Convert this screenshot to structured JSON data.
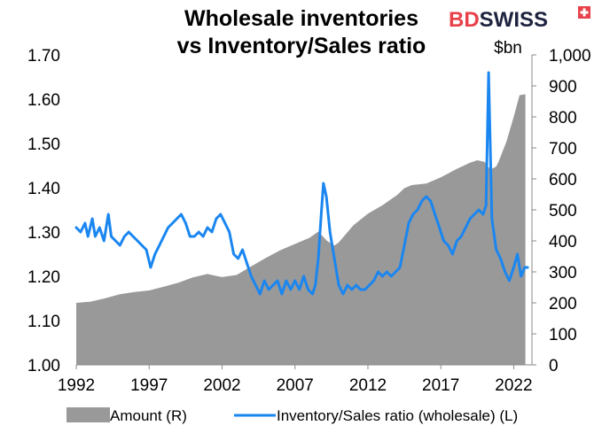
{
  "brand": {
    "name_part1": "BD",
    "name_part2": "SWISS",
    "mark_color": "#e8414b"
  },
  "chart_data": {
    "type": "area+line",
    "title_line1": "Wholesale inventories",
    "title_line2": "vs Inventory/Sales ratio",
    "right_unit": "$bn",
    "x_ticks": [
      "1992",
      "1997",
      "2002",
      "2007",
      "2012",
      "2017",
      "2022"
    ],
    "x_range": [
      1992,
      2023.25
    ],
    "y_left_ticks": [
      "1.00",
      "1.10",
      "1.20",
      "1.30",
      "1.40",
      "1.50",
      "1.60",
      "1.70"
    ],
    "y_left_range": [
      1.0,
      1.7
    ],
    "y_right_ticks": [
      "0",
      "100",
      "200",
      "300",
      "400",
      "500",
      "600",
      "700",
      "800",
      "900",
      "1,000"
    ],
    "y_right_range": [
      0,
      1000
    ],
    "series": [
      {
        "name": "Amount (R)",
        "axis": "right",
        "kind": "area",
        "color": "#999999",
        "points": [
          [
            1992.0,
            200
          ],
          [
            1993.0,
            204
          ],
          [
            1994.0,
            215
          ],
          [
            1995.0,
            228
          ],
          [
            1996.0,
            235
          ],
          [
            1997.0,
            240
          ],
          [
            1998.0,
            252
          ],
          [
            1999.0,
            265
          ],
          [
            2000.0,
            282
          ],
          [
            2001.0,
            293
          ],
          [
            2001.5,
            288
          ],
          [
            2002.0,
            283
          ],
          [
            2003.0,
            290
          ],
          [
            2004.0,
            318
          ],
          [
            2005.0,
            345
          ],
          [
            2006.0,
            370
          ],
          [
            2007.0,
            390
          ],
          [
            2008.0,
            410
          ],
          [
            2008.6,
            430
          ],
          [
            2009.2,
            400
          ],
          [
            2009.7,
            385
          ],
          [
            2010.0,
            395
          ],
          [
            2011.0,
            450
          ],
          [
            2012.0,
            488
          ],
          [
            2013.0,
            515
          ],
          [
            2014.0,
            548
          ],
          [
            2014.5,
            570
          ],
          [
            2015.0,
            580
          ],
          [
            2016.0,
            585
          ],
          [
            2017.0,
            605
          ],
          [
            2018.0,
            630
          ],
          [
            2019.0,
            652
          ],
          [
            2019.5,
            660
          ],
          [
            2020.0,
            655
          ],
          [
            2020.4,
            630
          ],
          [
            2020.8,
            640
          ],
          [
            2021.0,
            660
          ],
          [
            2021.5,
            720
          ],
          [
            2022.0,
            800
          ],
          [
            2022.4,
            870
          ],
          [
            2022.8,
            873
          ]
        ]
      },
      {
        "name": "Inventory/Sales ratio (wholesale) (L)",
        "axis": "left",
        "kind": "line",
        "color": "#1a86f0",
        "points": [
          [
            1992.0,
            1.31
          ],
          [
            1992.3,
            1.3
          ],
          [
            1992.6,
            1.32
          ],
          [
            1992.8,
            1.29
          ],
          [
            1993.1,
            1.33
          ],
          [
            1993.3,
            1.29
          ],
          [
            1993.6,
            1.31
          ],
          [
            1993.9,
            1.28
          ],
          [
            1994.2,
            1.34
          ],
          [
            1994.4,
            1.29
          ],
          [
            1994.7,
            1.28
          ],
          [
            1995.0,
            1.27
          ],
          [
            1995.3,
            1.29
          ],
          [
            1995.6,
            1.3
          ],
          [
            1995.9,
            1.29
          ],
          [
            1996.2,
            1.28
          ],
          [
            1996.5,
            1.27
          ],
          [
            1996.8,
            1.26
          ],
          [
            1997.1,
            1.22
          ],
          [
            1997.4,
            1.25
          ],
          [
            1997.7,
            1.27
          ],
          [
            1998.0,
            1.29
          ],
          [
            1998.3,
            1.31
          ],
          [
            1998.6,
            1.32
          ],
          [
            1998.9,
            1.33
          ],
          [
            1999.2,
            1.34
          ],
          [
            1999.5,
            1.32
          ],
          [
            1999.8,
            1.29
          ],
          [
            2000.1,
            1.29
          ],
          [
            2000.4,
            1.3
          ],
          [
            2000.7,
            1.29
          ],
          [
            2001.0,
            1.31
          ],
          [
            2001.3,
            1.3
          ],
          [
            2001.6,
            1.33
          ],
          [
            2001.9,
            1.34
          ],
          [
            2002.2,
            1.32
          ],
          [
            2002.5,
            1.3
          ],
          [
            2002.8,
            1.25
          ],
          [
            2003.1,
            1.24
          ],
          [
            2003.4,
            1.26
          ],
          [
            2003.7,
            1.23
          ],
          [
            2004.0,
            1.2
          ],
          [
            2004.3,
            1.18
          ],
          [
            2004.6,
            1.16
          ],
          [
            2004.9,
            1.19
          ],
          [
            2005.2,
            1.17
          ],
          [
            2005.5,
            1.18
          ],
          [
            2005.8,
            1.19
          ],
          [
            2006.1,
            1.16
          ],
          [
            2006.4,
            1.19
          ],
          [
            2006.7,
            1.17
          ],
          [
            2007.0,
            1.19
          ],
          [
            2007.3,
            1.17
          ],
          [
            2007.6,
            1.2
          ],
          [
            2007.9,
            1.17
          ],
          [
            2008.2,
            1.16
          ],
          [
            2008.4,
            1.18
          ],
          [
            2008.6,
            1.24
          ],
          [
            2008.8,
            1.34
          ],
          [
            2008.95,
            1.41
          ],
          [
            2009.15,
            1.38
          ],
          [
            2009.4,
            1.3
          ],
          [
            2009.7,
            1.24
          ],
          [
            2010.0,
            1.18
          ],
          [
            2010.3,
            1.16
          ],
          [
            2010.6,
            1.18
          ],
          [
            2010.9,
            1.17
          ],
          [
            2011.2,
            1.18
          ],
          [
            2011.5,
            1.17
          ],
          [
            2011.8,
            1.17
          ],
          [
            2012.1,
            1.18
          ],
          [
            2012.4,
            1.19
          ],
          [
            2012.7,
            1.21
          ],
          [
            2013.0,
            1.2
          ],
          [
            2013.3,
            1.21
          ],
          [
            2013.6,
            1.2
          ],
          [
            2013.9,
            1.21
          ],
          [
            2014.2,
            1.22
          ],
          [
            2014.5,
            1.27
          ],
          [
            2014.8,
            1.32
          ],
          [
            2015.1,
            1.34
          ],
          [
            2015.4,
            1.35
          ],
          [
            2015.7,
            1.37
          ],
          [
            2016.0,
            1.38
          ],
          [
            2016.3,
            1.37
          ],
          [
            2016.6,
            1.34
          ],
          [
            2016.9,
            1.31
          ],
          [
            2017.2,
            1.28
          ],
          [
            2017.5,
            1.27
          ],
          [
            2017.8,
            1.25
          ],
          [
            2018.1,
            1.28
          ],
          [
            2018.4,
            1.29
          ],
          [
            2018.7,
            1.31
          ],
          [
            2019.0,
            1.33
          ],
          [
            2019.3,
            1.34
          ],
          [
            2019.6,
            1.35
          ],
          [
            2019.9,
            1.34
          ],
          [
            2020.1,
            1.36
          ],
          [
            2020.28,
            1.66
          ],
          [
            2020.5,
            1.33
          ],
          [
            2020.8,
            1.26
          ],
          [
            2021.1,
            1.24
          ],
          [
            2021.4,
            1.21
          ],
          [
            2021.7,
            1.19
          ],
          [
            2022.0,
            1.22
          ],
          [
            2022.25,
            1.25
          ],
          [
            2022.5,
            1.2
          ],
          [
            2022.75,
            1.22
          ],
          [
            2022.95,
            1.22
          ]
        ]
      }
    ],
    "legend": {
      "placement": "bottom",
      "entries": [
        "Amount (R)",
        "Inventory/Sales ratio (wholesale) (L)"
      ]
    },
    "grid": false
  }
}
